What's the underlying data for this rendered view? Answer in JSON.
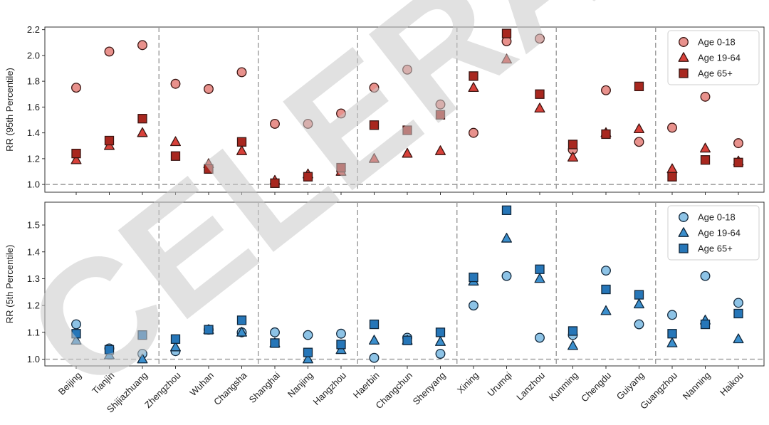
{
  "cities": [
    "Beijing",
    "Tianjin",
    "Shijiazhuang",
    "Zhengzhou",
    "Wuhan",
    "Changsha",
    "Shanghai",
    "Nanjing",
    "Hangzhou",
    "Haerbin",
    "Changchun",
    "Shenyang",
    "Xining",
    "Urumqi",
    "Lanzhou",
    "Kunming",
    "Chengdu",
    "Guiyang",
    "Guangzhou",
    "Nanning",
    "Haikou"
  ],
  "watermark_text": "CELERA",
  "chart_data": [
    {
      "type": "scatter",
      "ylabel": "RR (95th Percentile)",
      "ylim": [
        0.94,
        2.22
      ],
      "yticks": [
        "1.0",
        "1.2",
        "1.4",
        "1.6",
        "1.8",
        "2.0",
        "2.2"
      ],
      "reference_line": 1.0,
      "legend_position": "top-right",
      "colors": {
        "fill": "#e8918c",
        "fill_mid": "#d8413a",
        "fill_dark": "#a8271f",
        "edge": "#3a1512"
      },
      "series": [
        {
          "name": "Age 0-18",
          "marker": "circle",
          "values": [
            1.75,
            2.03,
            2.08,
            1.78,
            1.74,
            1.87,
            1.47,
            1.47,
            1.55,
            1.75,
            1.89,
            1.62,
            1.4,
            2.11,
            2.13,
            1.27,
            1.73,
            1.33,
            1.44,
            1.68,
            1.32
          ]
        },
        {
          "name": "Age 19-64",
          "marker": "triangle",
          "values": [
            1.19,
            1.3,
            1.4,
            1.33,
            1.16,
            1.26,
            1.03,
            1.08,
            1.1,
            1.2,
            1.24,
            1.26,
            1.75,
            1.97,
            1.59,
            1.21,
            1.4,
            1.43,
            1.12,
            1.28,
            1.18
          ]
        },
        {
          "name": "Age 65+",
          "marker": "square",
          "values": [
            1.24,
            1.34,
            1.51,
            1.22,
            1.12,
            1.33,
            1.01,
            1.06,
            1.13,
            1.46,
            1.42,
            1.54,
            1.84,
            2.17,
            1.7,
            1.31,
            1.39,
            1.76,
            1.06,
            1.19,
            1.17
          ]
        }
      ]
    },
    {
      "type": "scatter",
      "ylabel": "RR (5th Percentile)",
      "ylim": [
        0.975,
        1.585
      ],
      "yticks": [
        "1.0",
        "1.1",
        "1.2",
        "1.3",
        "1.4",
        "1.5"
      ],
      "reference_line": 1.0,
      "legend_position": "top-right",
      "colors": {
        "fill": "#8dc3e6",
        "fill_mid": "#3b8fcd",
        "fill_dark": "#2676b8",
        "edge": "#10263a"
      },
      "series": [
        {
          "name": "Age 0-18",
          "marker": "circle",
          "values": [
            1.13,
            1.04,
            1.02,
            1.03,
            1.11,
            1.1,
            1.1,
            1.09,
            1.095,
            1.005,
            1.08,
            1.02,
            1.2,
            1.31,
            1.08,
            1.09,
            1.33,
            1.13,
            1.165,
            1.31,
            1.21
          ]
        },
        {
          "name": "Age 19-64",
          "marker": "triangle",
          "values": [
            1.07,
            1.015,
            1.0,
            1.045,
            1.11,
            1.1,
            1.06,
            1.0,
            1.035,
            1.07,
            1.07,
            1.065,
            1.29,
            1.45,
            1.3,
            1.05,
            1.18,
            1.205,
            1.06,
            1.145,
            1.075
          ]
        },
        {
          "name": "Age 65+",
          "marker": "square",
          "values": [
            1.095,
            1.035,
            1.09,
            1.075,
            1.11,
            1.145,
            1.06,
            1.025,
            1.055,
            1.13,
            1.07,
            1.1,
            1.305,
            1.555,
            1.335,
            1.105,
            1.26,
            1.24,
            1.095,
            1.13,
            1.17
          ]
        }
      ]
    }
  ]
}
